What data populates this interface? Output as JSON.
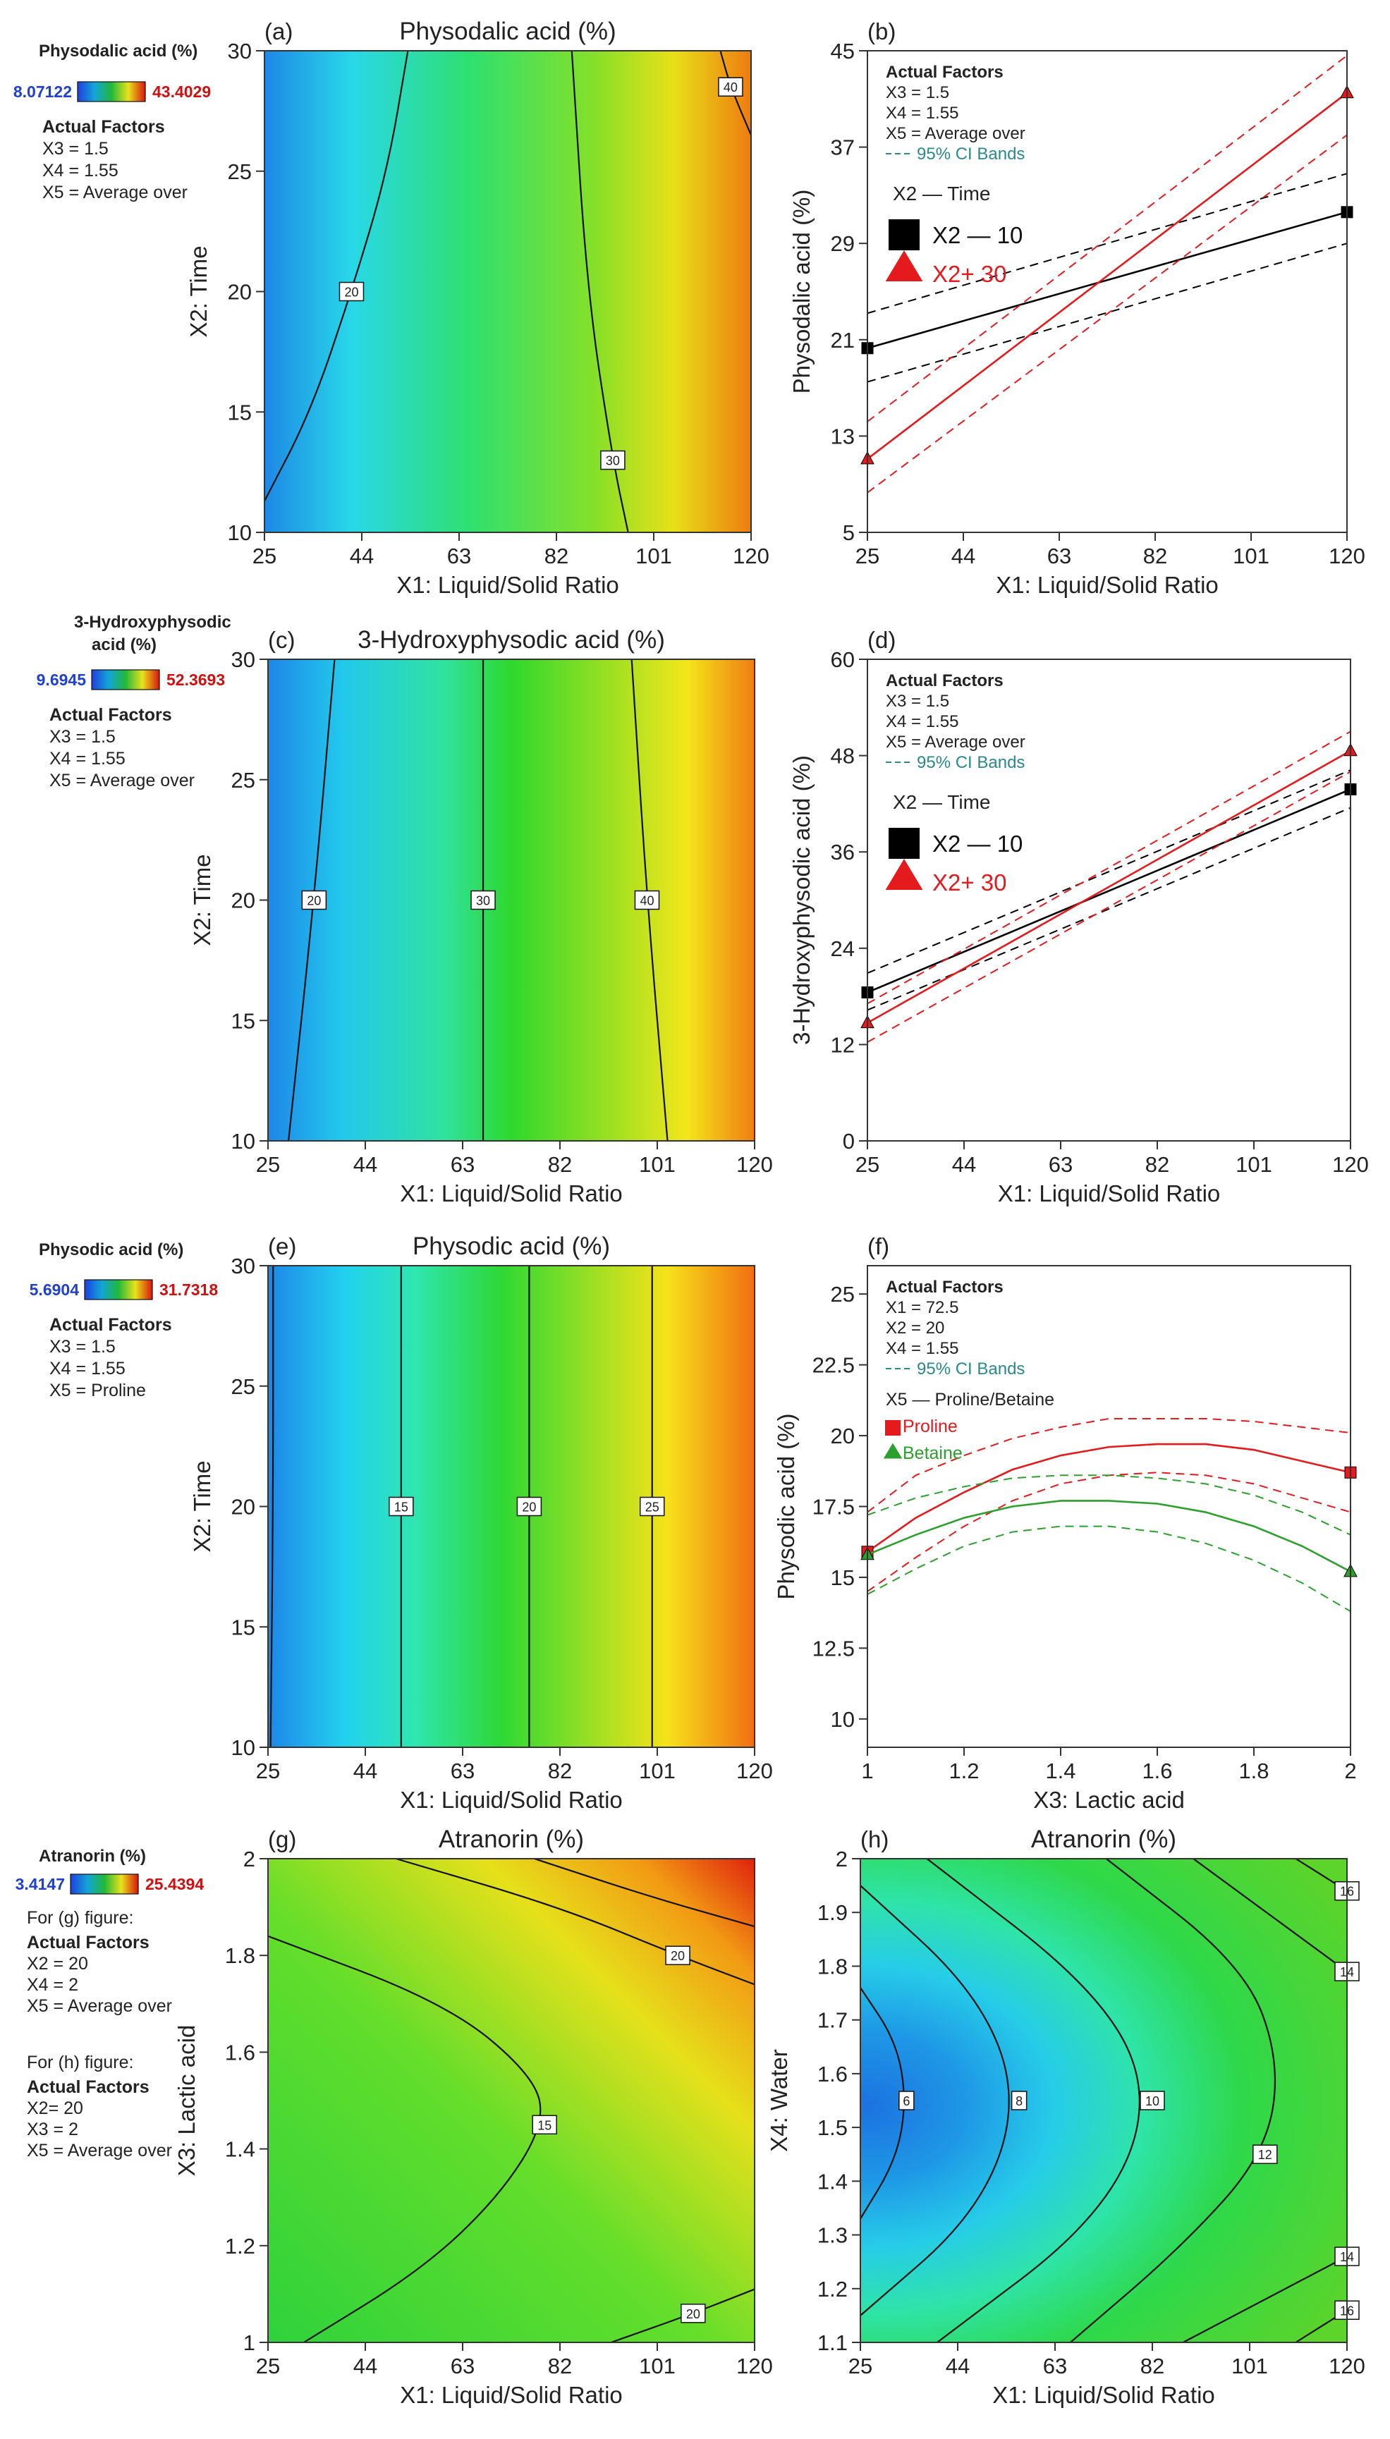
{
  "chart_data": [
    {
      "panel": "(a)",
      "type": "contour",
      "title": "Physodalic acid (%)",
      "xlabel": "X1: Liquid/Solid Ratio",
      "ylabel": "X2: Time",
      "xticks": [
        "25",
        "44",
        "63",
        "82",
        "101",
        "120"
      ],
      "xlim": [
        25,
        120
      ],
      "yticks": [
        "10",
        "15",
        "20",
        "25",
        "30"
      ],
      "ylim": [
        10,
        30
      ],
      "colorbar": {
        "title": "Physodalic acid (%)",
        "min": "8.07122",
        "max": "43.4029",
        "min_value": 8.07122,
        "max_value": 43.4029
      },
      "factors_title": "Actual Factors",
      "factors": [
        "X3 = 1.5",
        "X4 = 1.55",
        "X5 = Average over"
      ],
      "contours": [
        {
          "label": "20",
          "points": [
            [
              25,
              11.3
            ],
            [
              34,
              15
            ],
            [
              42,
              20
            ],
            [
              49,
              25
            ],
            [
              53,
              30
            ]
          ]
        },
        {
          "label": "30",
          "points": [
            [
              85,
              30
            ],
            [
              88,
              20
            ],
            [
              93,
              13
            ],
            [
              96,
              10
            ]
          ]
        },
        {
          "label": "40",
          "points": [
            [
              114,
              30
            ],
            [
              116,
              28.5
            ],
            [
              120,
              26.5
            ]
          ]
        }
      ]
    },
    {
      "panel": "(b)",
      "type": "line",
      "title": "",
      "xlabel": "X1: Liquid/Solid Ratio",
      "ylabel": "Physodalic acid (%)",
      "xticks": [
        "25",
        "44",
        "63",
        "82",
        "101",
        "120"
      ],
      "xlim": [
        25,
        120
      ],
      "yticks": [
        "5",
        "13",
        "21",
        "29",
        "37",
        "45"
      ],
      "ylim": [
        5,
        45
      ],
      "factors_title": "Actual Factors",
      "factors": [
        "X3 = 1.5",
        "X4 = 1.55",
        "X5 = Average over"
      ],
      "ci_legend": "95% CI Bands",
      "group_title": "X2 — Time",
      "series": [
        {
          "name": "X2 — 10",
          "x": [
            25,
            120
          ],
          "y": [
            20.3,
            31.6
          ],
          "ci_lo": [
            17.5,
            29.0
          ],
          "ci_hi": [
            23.2,
            34.8
          ],
          "color": "#000000",
          "marker": "square"
        },
        {
          "name": "X2+ 30",
          "x": [
            25,
            120
          ],
          "y": [
            11.1,
            41.5
          ],
          "ci_lo": [
            8.3,
            38.0
          ],
          "ci_hi": [
            14.2,
            44.6
          ],
          "color": "#e41a1c",
          "marker": "triangle"
        }
      ]
    },
    {
      "panel": "(c)",
      "type": "contour",
      "title": "3-Hydroxyphysodic acid (%)",
      "xlabel": "X1: Liquid/Solid Ratio",
      "ylabel": "X2: Time",
      "xticks": [
        "25",
        "44",
        "63",
        "82",
        "101",
        "120"
      ],
      "xlim": [
        25,
        120
      ],
      "yticks": [
        "10",
        "15",
        "20",
        "25",
        "30"
      ],
      "ylim": [
        10,
        30
      ],
      "colorbar": {
        "title_lines": [
          "3-Hydroxyphysodic",
          "acid (%)"
        ],
        "min": "9.6945",
        "max": "52.3693",
        "min_value": 9.6945,
        "max_value": 52.3693
      },
      "factors_title": "Actual Factors",
      "factors": [
        "X3 = 1.5",
        "X4 = 1.55",
        "X5 = Average over"
      ],
      "contours": [
        {
          "label": "20",
          "points": [
            [
              38,
              30
            ],
            [
              34,
              20
            ],
            [
              29,
              10
            ]
          ]
        },
        {
          "label": "30",
          "points": [
            [
              67,
              30
            ],
            [
              67,
              20
            ],
            [
              67,
              10
            ]
          ]
        },
        {
          "label": "40",
          "points": [
            [
              96,
              30
            ],
            [
              99,
              20
            ],
            [
              103,
              10
            ]
          ]
        }
      ]
    },
    {
      "panel": "(d)",
      "type": "line",
      "title": "",
      "xlabel": "X1: Liquid/Solid Ratio",
      "ylabel": "3-Hydroxyphysodic acid (%)",
      "xticks": [
        "25",
        "44",
        "63",
        "82",
        "101",
        "120"
      ],
      "xlim": [
        25,
        120
      ],
      "yticks": [
        "0",
        "12",
        "24",
        "36",
        "48",
        "60"
      ],
      "ylim": [
        0,
        60
      ],
      "factors_title": "Actual Factors",
      "factors": [
        "X3 = 1.5",
        "X4 = 1.55",
        "X5 = Average over"
      ],
      "ci_legend": "95% CI Bands",
      "group_title": "X2 — Time",
      "series": [
        {
          "name": "X2 — 10",
          "x": [
            25,
            120
          ],
          "y": [
            18.5,
            43.8
          ],
          "ci_lo": [
            16.3,
            41.5
          ],
          "ci_hi": [
            20.9,
            46.2
          ],
          "color": "#000000",
          "marker": "square"
        },
        {
          "name": "X2+ 30",
          "x": [
            25,
            120
          ],
          "y": [
            14.7,
            48.6
          ],
          "ci_lo": [
            12.3,
            46.0
          ],
          "ci_hi": [
            17.1,
            51.0
          ],
          "color": "#e41a1c",
          "marker": "triangle"
        }
      ]
    },
    {
      "panel": "(e)",
      "type": "contour",
      "title": "Physodic acid (%)",
      "xlabel": "X1: Liquid/Solid Ratio",
      "ylabel": "X2: Time",
      "xticks": [
        "25",
        "44",
        "63",
        "82",
        "101",
        "120"
      ],
      "xlim": [
        25,
        120
      ],
      "yticks": [
        "10",
        "15",
        "20",
        "25",
        "30"
      ],
      "ylim": [
        10,
        30
      ],
      "colorbar": {
        "title": "Physodic acid (%)",
        "min": "5.6904",
        "max": "31.7318",
        "min_value": 5.6904,
        "max_value": 31.7318
      },
      "factors_title": "Actual Factors",
      "factors": [
        "X3 = 1.5",
        "X4 = 1.55",
        "X5 = Proline"
      ],
      "contours": [
        {
          "label": "",
          "points": [
            [
              26,
              30
            ],
            [
              26,
              20
            ],
            [
              25.5,
              10
            ]
          ]
        },
        {
          "label": "15",
          "points": [
            [
              51,
              30
            ],
            [
              51,
              20
            ],
            [
              51,
              10
            ]
          ]
        },
        {
          "label": "20",
          "points": [
            [
              76,
              30
            ],
            [
              76,
              20
            ],
            [
              76,
              10
            ]
          ]
        },
        {
          "label": "25",
          "points": [
            [
              100,
              30
            ],
            [
              100,
              20
            ],
            [
              100,
              10
            ]
          ]
        }
      ]
    },
    {
      "panel": "(f)",
      "type": "line",
      "title": "",
      "xlabel": "X3: Lactic acid",
      "ylabel": "Physodic acid (%)",
      "xticks": [
        "1",
        "1.2",
        "1.4",
        "1.6",
        "1.8",
        "2"
      ],
      "xlim": [
        1,
        2
      ],
      "yticks": [
        "10",
        "12.5",
        "15",
        "17.5",
        "20",
        "22.5",
        "25"
      ],
      "ylim": [
        9,
        26
      ],
      "factors_title": "Actual Factors",
      "factors": [
        "X1 = 72.5",
        "X2 = 20",
        "X4 = 1.55"
      ],
      "ci_legend": "95% CI Bands",
      "group_title": "X5 — Proline/Betaine",
      "series": [
        {
          "name": "Proline",
          "x": [
            1,
            1.1,
            1.2,
            1.3,
            1.4,
            1.5,
            1.6,
            1.7,
            1.8,
            1.9,
            2
          ],
          "y": [
            15.9,
            17.1,
            18.0,
            18.8,
            19.3,
            19.6,
            19.7,
            19.7,
            19.5,
            19.1,
            18.7
          ],
          "ci_lo": [
            14.5,
            15.7,
            16.8,
            17.7,
            18.3,
            18.6,
            18.7,
            18.6,
            18.3,
            17.8,
            17.3
          ],
          "ci_hi": [
            17.3,
            18.6,
            19.3,
            19.9,
            20.3,
            20.6,
            20.6,
            20.6,
            20.5,
            20.3,
            20.1
          ],
          "color": "#e41a1c",
          "marker": "square"
        },
        {
          "name": "Betaine",
          "x": [
            1,
            1.1,
            1.2,
            1.3,
            1.4,
            1.5,
            1.6,
            1.7,
            1.8,
            1.9,
            2
          ],
          "y": [
            15.8,
            16.5,
            17.1,
            17.5,
            17.7,
            17.7,
            17.6,
            17.3,
            16.8,
            16.1,
            15.2
          ],
          "ci_lo": [
            14.4,
            15.3,
            16.1,
            16.6,
            16.8,
            16.8,
            16.6,
            16.2,
            15.6,
            14.8,
            13.8
          ],
          "ci_hi": [
            17.2,
            17.8,
            18.2,
            18.5,
            18.6,
            18.6,
            18.5,
            18.3,
            17.9,
            17.3,
            16.5
          ],
          "color": "#2ca02c",
          "marker": "triangle"
        }
      ]
    },
    {
      "panel": "(g)",
      "type": "contour",
      "title": "Atranorin (%)",
      "xlabel": "X1: Liquid/Solid Ratio",
      "ylabel": "X3: Lactic acid",
      "xticks": [
        "25",
        "44",
        "63",
        "82",
        "101",
        "120"
      ],
      "xlim": [
        25,
        120
      ],
      "yticks": [
        "1",
        "1.2",
        "1.4",
        "1.6",
        "1.8",
        "2"
      ],
      "ylim": [
        1,
        2
      ],
      "colorbar": {
        "title": "Atranorin (%)",
        "min": "3.4147",
        "max": "25.4394",
        "min_value": 3.4147,
        "max_value": 25.4394
      },
      "notes": [
        {
          "heading": "For (g) figure:",
          "title": "Actual Factors",
          "factors": [
            "X2 = 20",
            "X4 = 2",
            "X5 = Average over"
          ]
        },
        {
          "heading": "For (h) figure:",
          "title": "Actual Factors",
          "factors": [
            "X2= 20",
            "X3 = 2",
            "X5 = Average over"
          ]
        }
      ],
      "contours": [
        {
          "label": "20",
          "points": [
            [
              50,
              2
            ],
            [
              82,
              1.9
            ],
            [
              105,
              1.8
            ],
            [
              120,
              1.74
            ]
          ]
        },
        {
          "label": "",
          "points": [
            [
              77,
              2
            ],
            [
              100,
              1.92
            ],
            [
              120,
              1.86
            ]
          ]
        },
        {
          "label": "15",
          "points": [
            [
              25,
              1.84
            ],
            [
              60,
              1.7
            ],
            [
              77,
              1.55
            ],
            [
              79,
              1.45
            ],
            [
              70,
              1.3
            ],
            [
              55,
              1.15
            ],
            [
              32,
              1
            ]
          ]
        },
        {
          "label": "20",
          "points": [
            [
              92,
              1
            ],
            [
              108,
              1.06
            ],
            [
              120,
              1.11
            ]
          ]
        }
      ]
    },
    {
      "panel": "(h)",
      "type": "contour",
      "title": "Atranorin (%)",
      "xlabel": "X1: Liquid/Solid Ratio",
      "ylabel": "X4: Water",
      "xticks": [
        "25",
        "44",
        "63",
        "82",
        "101",
        "120"
      ],
      "xlim": [
        25,
        120
      ],
      "yticks": [
        "1.1",
        "1.2",
        "1.3",
        "1.4",
        "1.5",
        "1.6",
        "1.7",
        "1.8",
        "1.9",
        "2"
      ],
      "ylim": [
        1.1,
        2
      ],
      "contours": [
        {
          "label": "6",
          "points": [
            [
              25,
              1.76
            ],
            [
              32,
              1.66
            ],
            [
              34,
              1.55
            ],
            [
              32,
              1.44
            ],
            [
              25,
              1.33
            ]
          ]
        },
        {
          "label": "8",
          "points": [
            [
              25,
              1.95
            ],
            [
              48,
              1.75
            ],
            [
              56,
              1.55
            ],
            [
              48,
              1.34
            ],
            [
              25,
              1.15
            ]
          ]
        },
        {
          "label": "10",
          "points": [
            [
              38,
              2
            ],
            [
              72,
              1.75
            ],
            [
              82,
              1.55
            ],
            [
              72,
              1.33
            ],
            [
              40,
              1.1
            ]
          ]
        },
        {
          "label": "12",
          "points": [
            [
              73,
              2
            ],
            [
              100,
              1.8
            ],
            [
              107,
              1.62
            ],
            [
              104,
              1.45
            ],
            [
              88,
              1.28
            ],
            [
              66,
              1.1
            ]
          ]
        },
        {
          "label": "14",
          "points": [
            [
              90,
              2
            ],
            [
              120,
              1.79
            ]
          ]
        },
        {
          "label": "16",
          "points": [
            [
              110,
              2
            ],
            [
              120,
              1.94
            ]
          ]
        },
        {
          "label": "14",
          "points": [
            [
              88,
              1.1
            ],
            [
              120,
              1.26
            ]
          ]
        },
        {
          "label": "16",
          "points": [
            [
              110,
              1.1
            ],
            [
              120,
              1.16
            ]
          ]
        }
      ]
    }
  ]
}
